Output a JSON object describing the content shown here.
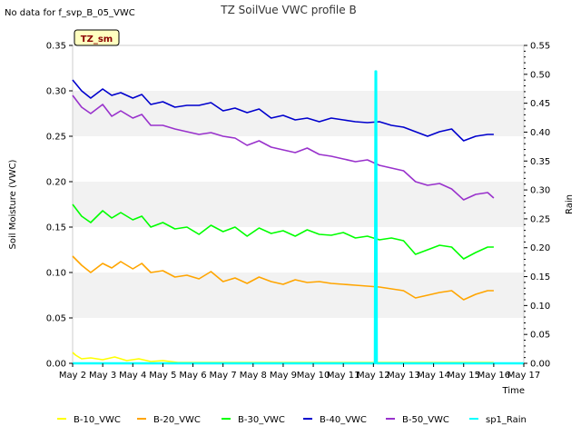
{
  "chart_data": {
    "type": "line",
    "title": "TZ SoilVue VWC profile B",
    "note": "No data for f_svp_B_05_VWC",
    "badge": "TZ_sm",
    "xlabel": "Time",
    "ylabel": "Soil Moisture (VWC)",
    "y2label": "Rain",
    "x_ticks": [
      "May 2",
      "May 3",
      "May 4",
      "May 5",
      "May 6",
      "May 7",
      "May 8",
      "May 9",
      "May 10",
      "May 11",
      "May 12",
      "May 13",
      "May 14",
      "May 15",
      "May 16",
      "May 17"
    ],
    "xlim": [
      2,
      17
    ],
    "ylim": [
      0,
      0.35
    ],
    "y_ticks": [
      "0.00",
      "0.05",
      "0.10",
      "0.15",
      "0.20",
      "0.25",
      "0.30",
      "0.35"
    ],
    "y2lim": [
      0,
      0.55
    ],
    "y2_ticks": [
      "0.00",
      "0.05",
      "0.10",
      "0.15",
      "0.20",
      "0.25",
      "0.30",
      "0.35",
      "0.40",
      "0.45",
      "0.50",
      "0.55"
    ],
    "grid": "horizontal bands",
    "legend_position": "bottom",
    "colors": {
      "B-10_VWC": "#ffff00",
      "B-20_VWC": "#ffa500",
      "B-30_VWC": "#00ff00",
      "B-40_VWC": "#0000cd",
      "B-50_VWC": "#9932cc",
      "sp1_Rain": "#00ffff"
    },
    "series": [
      {
        "name": "B-10_VWC",
        "axis": "left",
        "x": [
          2.0,
          2.1,
          2.3,
          2.6,
          3.0,
          3.4,
          3.8,
          4.2,
          4.6,
          5.0,
          5.5,
          6.0,
          7.0,
          8.0,
          9.0,
          10.0,
          11.0,
          12.0,
          13.0,
          14.0,
          15.0,
          16.0
        ],
        "y": [
          0.012,
          0.009,
          0.005,
          0.006,
          0.004,
          0.007,
          0.003,
          0.005,
          0.002,
          0.003,
          0.001,
          0.001,
          0.001,
          0.001,
          0.001,
          0.001,
          0.001,
          0.001,
          0.001,
          0.001,
          0.001,
          0.001
        ]
      },
      {
        "name": "B-20_VWC",
        "axis": "left",
        "x": [
          2.0,
          2.3,
          2.6,
          3.0,
          3.3,
          3.6,
          4.0,
          4.3,
          4.6,
          5.0,
          5.4,
          5.8,
          6.2,
          6.6,
          7.0,
          7.4,
          7.8,
          8.2,
          8.6,
          9.0,
          9.4,
          9.8,
          10.2,
          10.6,
          11.0,
          11.4,
          11.8,
          12.2,
          12.6,
          13.0,
          13.4,
          13.8,
          14.2,
          14.6,
          15.0,
          15.4,
          15.8,
          16.0
        ],
        "y": [
          0.118,
          0.108,
          0.1,
          0.11,
          0.105,
          0.112,
          0.104,
          0.11,
          0.1,
          0.102,
          0.095,
          0.097,
          0.093,
          0.101,
          0.09,
          0.094,
          0.088,
          0.095,
          0.09,
          0.087,
          0.092,
          0.089,
          0.09,
          0.088,
          0.087,
          0.086,
          0.085,
          0.084,
          0.082,
          0.08,
          0.072,
          0.075,
          0.078,
          0.08,
          0.07,
          0.076,
          0.08,
          0.08
        ]
      },
      {
        "name": "B-30_VWC",
        "axis": "left",
        "x": [
          2.0,
          2.3,
          2.6,
          3.0,
          3.3,
          3.6,
          4.0,
          4.3,
          4.6,
          5.0,
          5.4,
          5.8,
          6.2,
          6.6,
          7.0,
          7.4,
          7.8,
          8.2,
          8.6,
          9.0,
          9.4,
          9.8,
          10.2,
          10.6,
          11.0,
          11.4,
          11.8,
          12.2,
          12.6,
          13.0,
          13.4,
          13.8,
          14.2,
          14.6,
          15.0,
          15.4,
          15.8,
          16.0
        ],
        "y": [
          0.175,
          0.162,
          0.155,
          0.168,
          0.16,
          0.166,
          0.158,
          0.162,
          0.15,
          0.155,
          0.148,
          0.15,
          0.142,
          0.152,
          0.145,
          0.15,
          0.14,
          0.149,
          0.143,
          0.146,
          0.14,
          0.147,
          0.142,
          0.141,
          0.144,
          0.138,
          0.14,
          0.136,
          0.138,
          0.135,
          0.12,
          0.125,
          0.13,
          0.128,
          0.115,
          0.122,
          0.128,
          0.128
        ]
      },
      {
        "name": "B-40_VWC",
        "axis": "left",
        "x": [
          2.0,
          2.3,
          2.6,
          3.0,
          3.3,
          3.6,
          4.0,
          4.3,
          4.6,
          5.0,
          5.4,
          5.8,
          6.2,
          6.6,
          7.0,
          7.4,
          7.8,
          8.2,
          8.6,
          9.0,
          9.4,
          9.8,
          10.2,
          10.6,
          11.0,
          11.4,
          11.8,
          12.2,
          12.6,
          13.0,
          13.4,
          13.8,
          14.2,
          14.6,
          15.0,
          15.4,
          15.8,
          16.0
        ],
        "y": [
          0.312,
          0.3,
          0.292,
          0.302,
          0.295,
          0.298,
          0.292,
          0.296,
          0.285,
          0.288,
          0.282,
          0.284,
          0.284,
          0.287,
          0.278,
          0.281,
          0.276,
          0.28,
          0.27,
          0.273,
          0.268,
          0.27,
          0.266,
          0.27,
          0.268,
          0.266,
          0.265,
          0.266,
          0.262,
          0.26,
          0.255,
          0.25,
          0.255,
          0.258,
          0.245,
          0.25,
          0.252,
          0.252
        ]
      },
      {
        "name": "B-50_VWC",
        "axis": "left",
        "x": [
          2.0,
          2.3,
          2.6,
          3.0,
          3.3,
          3.6,
          4.0,
          4.3,
          4.6,
          5.0,
          5.4,
          5.8,
          6.2,
          6.6,
          7.0,
          7.4,
          7.8,
          8.2,
          8.6,
          9.0,
          9.4,
          9.8,
          10.2,
          10.6,
          11.0,
          11.4,
          11.8,
          12.2,
          12.6,
          13.0,
          13.4,
          13.8,
          14.2,
          14.6,
          15.0,
          15.4,
          15.8,
          16.0
        ],
        "y": [
          0.295,
          0.282,
          0.275,
          0.285,
          0.272,
          0.278,
          0.27,
          0.274,
          0.262,
          0.262,
          0.258,
          0.255,
          0.252,
          0.254,
          0.25,
          0.248,
          0.24,
          0.245,
          0.238,
          0.235,
          0.232,
          0.237,
          0.23,
          0.228,
          0.225,
          0.222,
          0.224,
          0.218,
          0.215,
          0.212,
          0.2,
          0.196,
          0.198,
          0.192,
          0.18,
          0.186,
          0.188,
          0.182
        ]
      },
      {
        "name": "sp1_Rain",
        "axis": "right",
        "x": [
          2.0,
          12.05,
          12.07,
          12.09,
          12.11,
          17.0
        ],
        "y": [
          0.0,
          0.0,
          0.505,
          0.505,
          0.0,
          0.0
        ]
      }
    ]
  }
}
